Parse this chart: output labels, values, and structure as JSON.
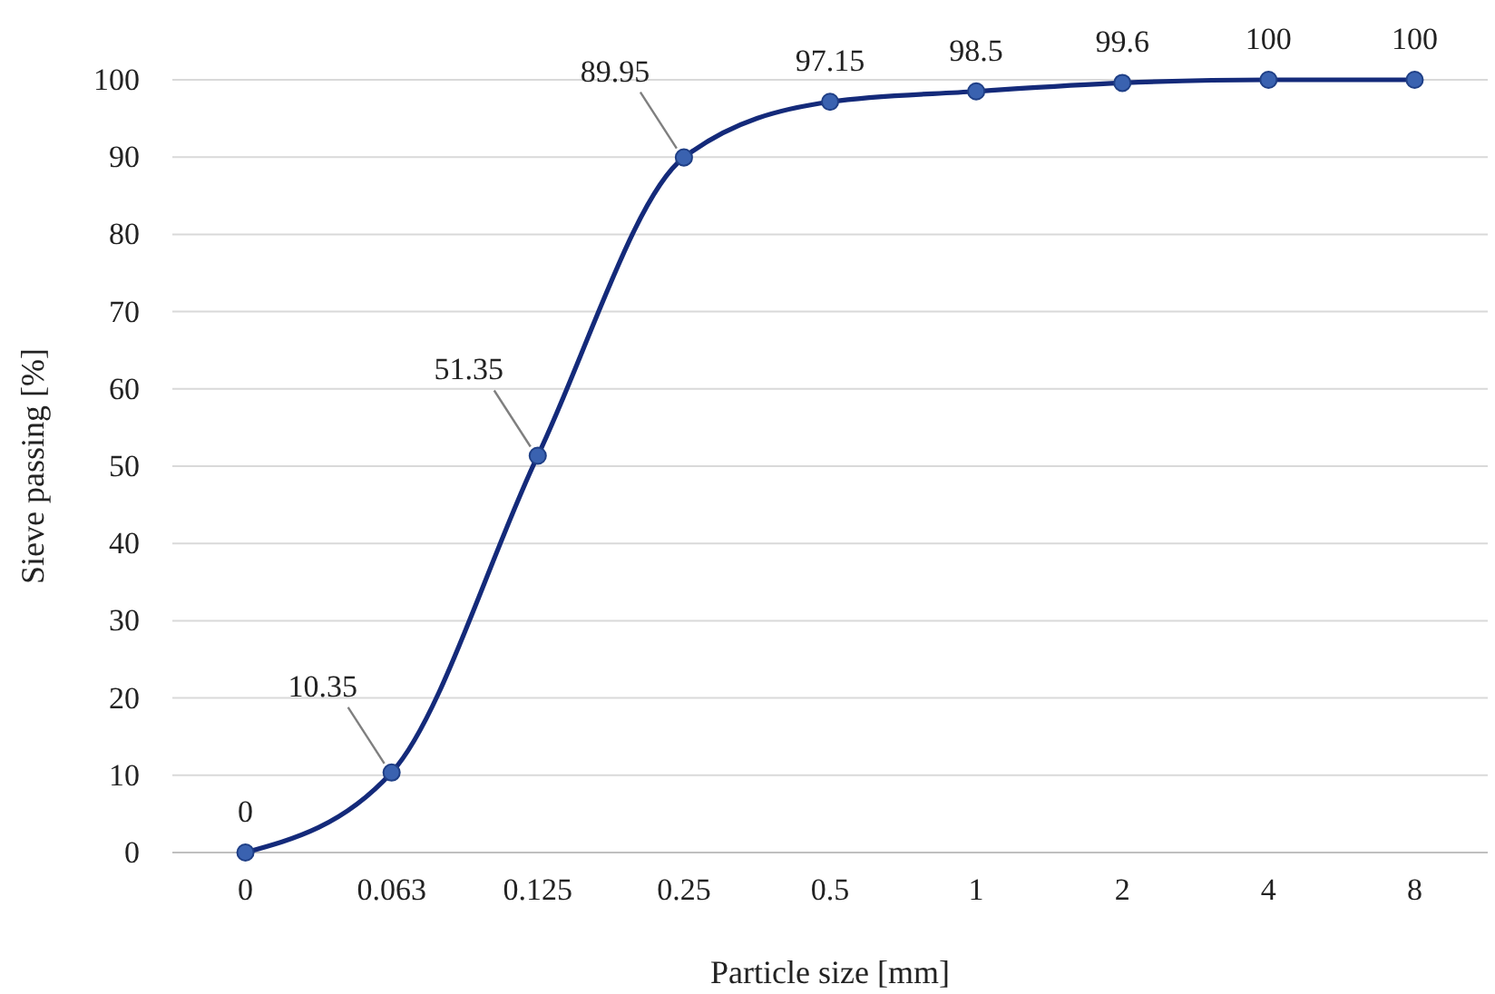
{
  "chart_data": {
    "type": "line",
    "xlabel": "Particle size [mm]",
    "ylabel": "Sieve passing [%]",
    "categories": [
      "0",
      "0.063",
      "0.125",
      "0.25",
      "0.5",
      "1",
      "2",
      "4",
      "8"
    ],
    "series": [
      {
        "color": "#142a7a",
        "values": [
          0,
          10.35,
          51.35,
          89.95,
          97.15,
          98.5,
          99.6,
          100,
          100
        ]
      }
    ],
    "ylim": [
      0,
      100
    ],
    "yticks": [
      0,
      10,
      20,
      30,
      40,
      50,
      60,
      70,
      80,
      90,
      100
    ],
    "grid": "y",
    "marker": "circle",
    "line_style": "solid",
    "data_labels": true
  }
}
